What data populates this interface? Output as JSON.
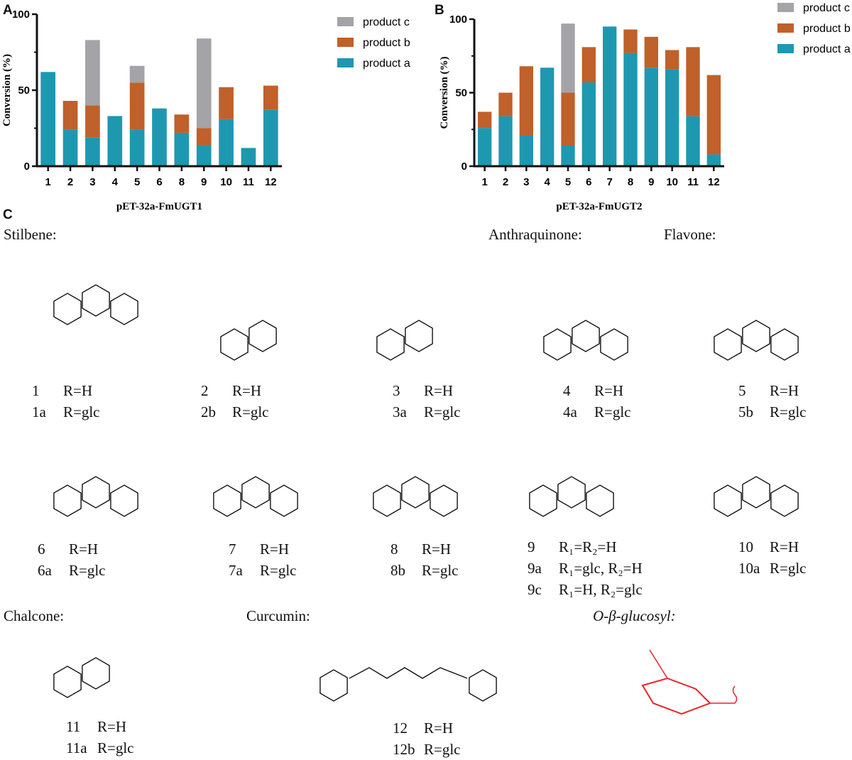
{
  "panels": {
    "a": "A",
    "b": "B",
    "c": "C"
  },
  "colors": {
    "product_a": "#1e98b0",
    "product_b": "#c0602a",
    "product_c": "#a3a3a8"
  },
  "chart_data": [
    {
      "type": "bar",
      "stacked": true,
      "title": "",
      "xlabel": "pET-32a-FmUGT1",
      "ylabel": "Conversion (%)",
      "ylim": [
        0,
        100
      ],
      "yticks": [
        "0",
        "50",
        "100"
      ],
      "legend_position": "top-right",
      "categories": [
        "1",
        "2",
        "3",
        "4",
        "5",
        "6",
        "8",
        "9",
        "10",
        "11",
        "12"
      ],
      "series": [
        {
          "name": "product a",
          "values": [
            62,
            24,
            19,
            33,
            24,
            38,
            22,
            14,
            31,
            12,
            37
          ]
        },
        {
          "name": "product b",
          "values": [
            0,
            19,
            21,
            0,
            31,
            0,
            12,
            11,
            21,
            0,
            16
          ]
        },
        {
          "name": "product c",
          "values": [
            0,
            0,
            43,
            0,
            11,
            0,
            0,
            59,
            0,
            0,
            0
          ]
        }
      ]
    },
    {
      "type": "bar",
      "stacked": true,
      "title": "",
      "xlabel": "pET-32a-FmUGT2",
      "ylabel": "Conversion (%)",
      "ylim": [
        0,
        100
      ],
      "yticks": [
        "0",
        "50",
        "100"
      ],
      "legend_position": "top-right",
      "categories": [
        "1",
        "2",
        "3",
        "4",
        "5",
        "6",
        "7",
        "8",
        "9",
        "10",
        "11",
        "12"
      ],
      "series": [
        {
          "name": "product a",
          "values": [
            26,
            34,
            21,
            67,
            14,
            57,
            95,
            77,
            67,
            66,
            34,
            8
          ]
        },
        {
          "name": "product b",
          "values": [
            11,
            16,
            47,
            0,
            36,
            24,
            0,
            16,
            21,
            13,
            47,
            54
          ]
        },
        {
          "name": "product c",
          "values": [
            0,
            0,
            0,
            0,
            47,
            0,
            0,
            0,
            0,
            0,
            0,
            0
          ]
        }
      ]
    }
  ],
  "structures": {
    "categories": {
      "stilbene": "Stilbene:",
      "anthraquinone": "Anthraquinone:",
      "flavone": "Flavone:",
      "chalcone": "Chalcone:",
      "curcumin": "Curcumin:",
      "glucosyl": "O-β-glucosyl:"
    },
    "compounds": [
      {
        "lines": [
          [
            "1",
            "R=H"
          ],
          [
            "1a",
            "R=glc"
          ]
        ]
      },
      {
        "lines": [
          [
            "2",
            "R=H"
          ],
          [
            "2b",
            "R=glc"
          ]
        ]
      },
      {
        "lines": [
          [
            "3",
            "R=H"
          ],
          [
            "3a",
            "R=glc"
          ]
        ]
      },
      {
        "lines": [
          [
            "4",
            "R=H"
          ],
          [
            "4a",
            "R=glc"
          ]
        ]
      },
      {
        "lines": [
          [
            "5",
            "R=H"
          ],
          [
            "5b",
            "R=glc"
          ]
        ]
      },
      {
        "lines": [
          [
            "6",
            "R=H"
          ],
          [
            "6a",
            "R=glc"
          ]
        ]
      },
      {
        "lines": [
          [
            "7",
            "R=H"
          ],
          [
            "7a",
            "R=glc"
          ]
        ]
      },
      {
        "lines": [
          [
            "8",
            "R=H"
          ],
          [
            "8b",
            "R=glc"
          ]
        ]
      },
      {
        "lines": [
          [
            "9",
            "R₁=R₂=H"
          ],
          [
            "9a",
            "R₁=glc, R₂=H"
          ],
          [
            "9c",
            "R₁=H, R₂=glc"
          ]
        ]
      },
      {
        "lines": [
          [
            "10",
            "R=H"
          ],
          [
            "10a",
            "R=glc"
          ]
        ]
      },
      {
        "lines": [
          [
            "11",
            "R=H"
          ],
          [
            "11a",
            "R=glc"
          ]
        ]
      },
      {
        "lines": [
          [
            "12",
            "R=H"
          ],
          [
            "12b",
            "R=glc"
          ]
        ]
      }
    ]
  }
}
